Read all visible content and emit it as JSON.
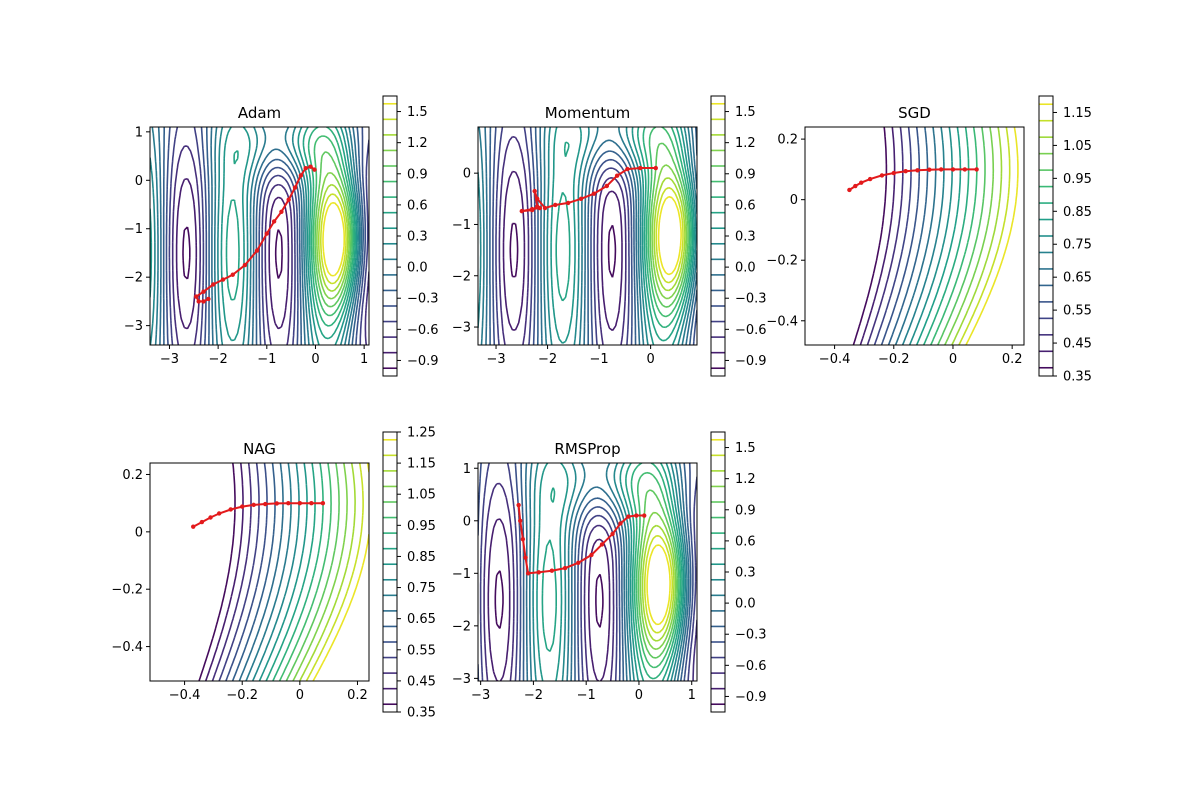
{
  "chart_data": [
    {
      "type": "contour",
      "title": "Adam",
      "xlim": [
        -3.4,
        1.1
      ],
      "ylim": [
        -3.4,
        1.1
      ],
      "xticks": [
        -3,
        -2,
        -1,
        0,
        1
      ],
      "yticks": [
        -3,
        -2,
        -1,
        0,
        1
      ],
      "colorbar": {
        "min": -1.05,
        "max": 1.65,
        "ticks": [
          "1.5",
          "1.2",
          "0.9",
          "0.6",
          "0.3",
          "0.0",
          "-0.3",
          "-0.6",
          "-0.9"
        ],
        "levels": 18
      },
      "trajectory": {
        "color": "#e31a1c",
        "x": [
          -0.02,
          -0.1,
          -0.2,
          -0.3,
          -0.42,
          -0.55,
          -0.7,
          -0.85,
          -1.0,
          -1.2,
          -1.45,
          -1.7,
          -1.9,
          -2.1,
          -2.3,
          -2.45,
          -2.4,
          -2.3,
          -2.2
        ],
        "y": [
          0.22,
          0.28,
          0.25,
          0.1,
          -0.15,
          -0.4,
          -0.65,
          -0.85,
          -1.1,
          -1.45,
          -1.75,
          -1.95,
          -2.05,
          -2.15,
          -2.3,
          -2.4,
          -2.5,
          -2.5,
          -2.45
        ]
      }
    },
    {
      "type": "contour",
      "title": "Momentum",
      "xlim": [
        -3.35,
        0.9
      ],
      "ylim": [
        -3.35,
        0.9
      ],
      "xticks": [
        -3,
        -2,
        -1,
        0
      ],
      "yticks": [
        -3,
        -2,
        -1,
        0
      ],
      "colorbar": {
        "min": -1.05,
        "max": 1.65,
        "ticks": [
          "1.5",
          "1.2",
          "0.9",
          "0.6",
          "0.3",
          "0.0",
          "-0.3",
          "-0.6",
          "-0.9"
        ],
        "levels": 18
      },
      "trajectory": {
        "color": "#e31a1c",
        "x": [
          0.1,
          -0.2,
          -0.45,
          -0.65,
          -0.85,
          -1.1,
          -1.35,
          -1.6,
          -1.85,
          -2.05,
          -2.2,
          -2.25,
          -2.2,
          -2.3,
          -2.5,
          -2.3,
          -2.15
        ],
        "y": [
          0.1,
          0.1,
          0.08,
          -0.05,
          -0.25,
          -0.4,
          -0.5,
          -0.58,
          -0.62,
          -0.68,
          -0.5,
          -0.35,
          -0.65,
          -0.72,
          -0.74,
          -0.7,
          -0.68
        ]
      }
    },
    {
      "type": "contour",
      "title": "SGD",
      "xlim": [
        -0.5,
        0.24
      ],
      "ylim": [
        -0.48,
        0.24
      ],
      "xticks": [
        -0.4,
        -0.2,
        0.0,
        0.2
      ],
      "yticks": [
        -0.4,
        -0.2,
        0.0,
        0.2
      ],
      "colorbar": {
        "min": 0.35,
        "max": 1.2,
        "ticks": [
          "1.15",
          "1.05",
          "0.95",
          "0.85",
          "0.75",
          "0.65",
          "0.55",
          "0.45",
          "0.35"
        ],
        "levels": 17
      },
      "trajectory": {
        "color": "#e31a1c",
        "x": [
          0.08,
          0.04,
          0.0,
          -0.04,
          -0.08,
          -0.12,
          -0.16,
          -0.2,
          -0.24,
          -0.28,
          -0.31,
          -0.33,
          -0.35
        ],
        "y": [
          0.1,
          0.1,
          0.1,
          0.1,
          0.099,
          0.097,
          0.094,
          0.088,
          0.08,
          0.068,
          0.056,
          0.045,
          0.032
        ]
      }
    },
    {
      "type": "contour",
      "title": "NAG",
      "xlim": [
        -0.52,
        0.24
      ],
      "ylim": [
        -0.52,
        0.24
      ],
      "xticks": [
        -0.4,
        -0.2,
        0.0,
        0.2
      ],
      "yticks": [
        -0.4,
        -0.2,
        0.0,
        0.2
      ],
      "colorbar": {
        "min": 0.35,
        "max": 1.25,
        "ticks": [
          "1.25",
          "1.15",
          "1.05",
          "0.95",
          "0.85",
          "0.75",
          "0.65",
          "0.55",
          "0.45",
          "0.35"
        ],
        "levels": 18
      },
      "trajectory": {
        "color": "#e31a1c",
        "x": [
          0.08,
          0.04,
          0.0,
          -0.04,
          -0.08,
          -0.12,
          -0.16,
          -0.2,
          -0.24,
          -0.28,
          -0.31,
          -0.34,
          -0.37
        ],
        "y": [
          0.1,
          0.1,
          0.1,
          0.1,
          0.099,
          0.097,
          0.094,
          0.088,
          0.078,
          0.064,
          0.05,
          0.034,
          0.018
        ]
      }
    },
    {
      "type": "contour",
      "title": "RMSProp",
      "xlim": [
        -3.05,
        1.1
      ],
      "ylim": [
        -3.05,
        1.1
      ],
      "xticks": [
        -3,
        -2,
        -1,
        0,
        1
      ],
      "yticks": [
        -3,
        -2,
        -1,
        0,
        1
      ],
      "colorbar": {
        "min": -1.05,
        "max": 1.65,
        "ticks": [
          "1.5",
          "1.2",
          "0.9",
          "0.6",
          "0.3",
          "0.0",
          "-0.3",
          "-0.6",
          "-0.9"
        ],
        "levels": 18
      },
      "trajectory": {
        "color": "#e31a1c",
        "x": [
          0.1,
          -0.05,
          -0.2,
          -0.35,
          -0.5,
          -0.7,
          -0.9,
          -1.15,
          -1.4,
          -1.65,
          -1.9,
          -2.1,
          -2.15,
          -2.2,
          -2.25,
          -2.28
        ],
        "y": [
          0.1,
          0.1,
          0.08,
          -0.05,
          -0.25,
          -0.45,
          -0.65,
          -0.8,
          -0.9,
          -0.95,
          -0.98,
          -1.0,
          -0.7,
          -0.35,
          0.0,
          0.3
        ]
      }
    }
  ]
}
